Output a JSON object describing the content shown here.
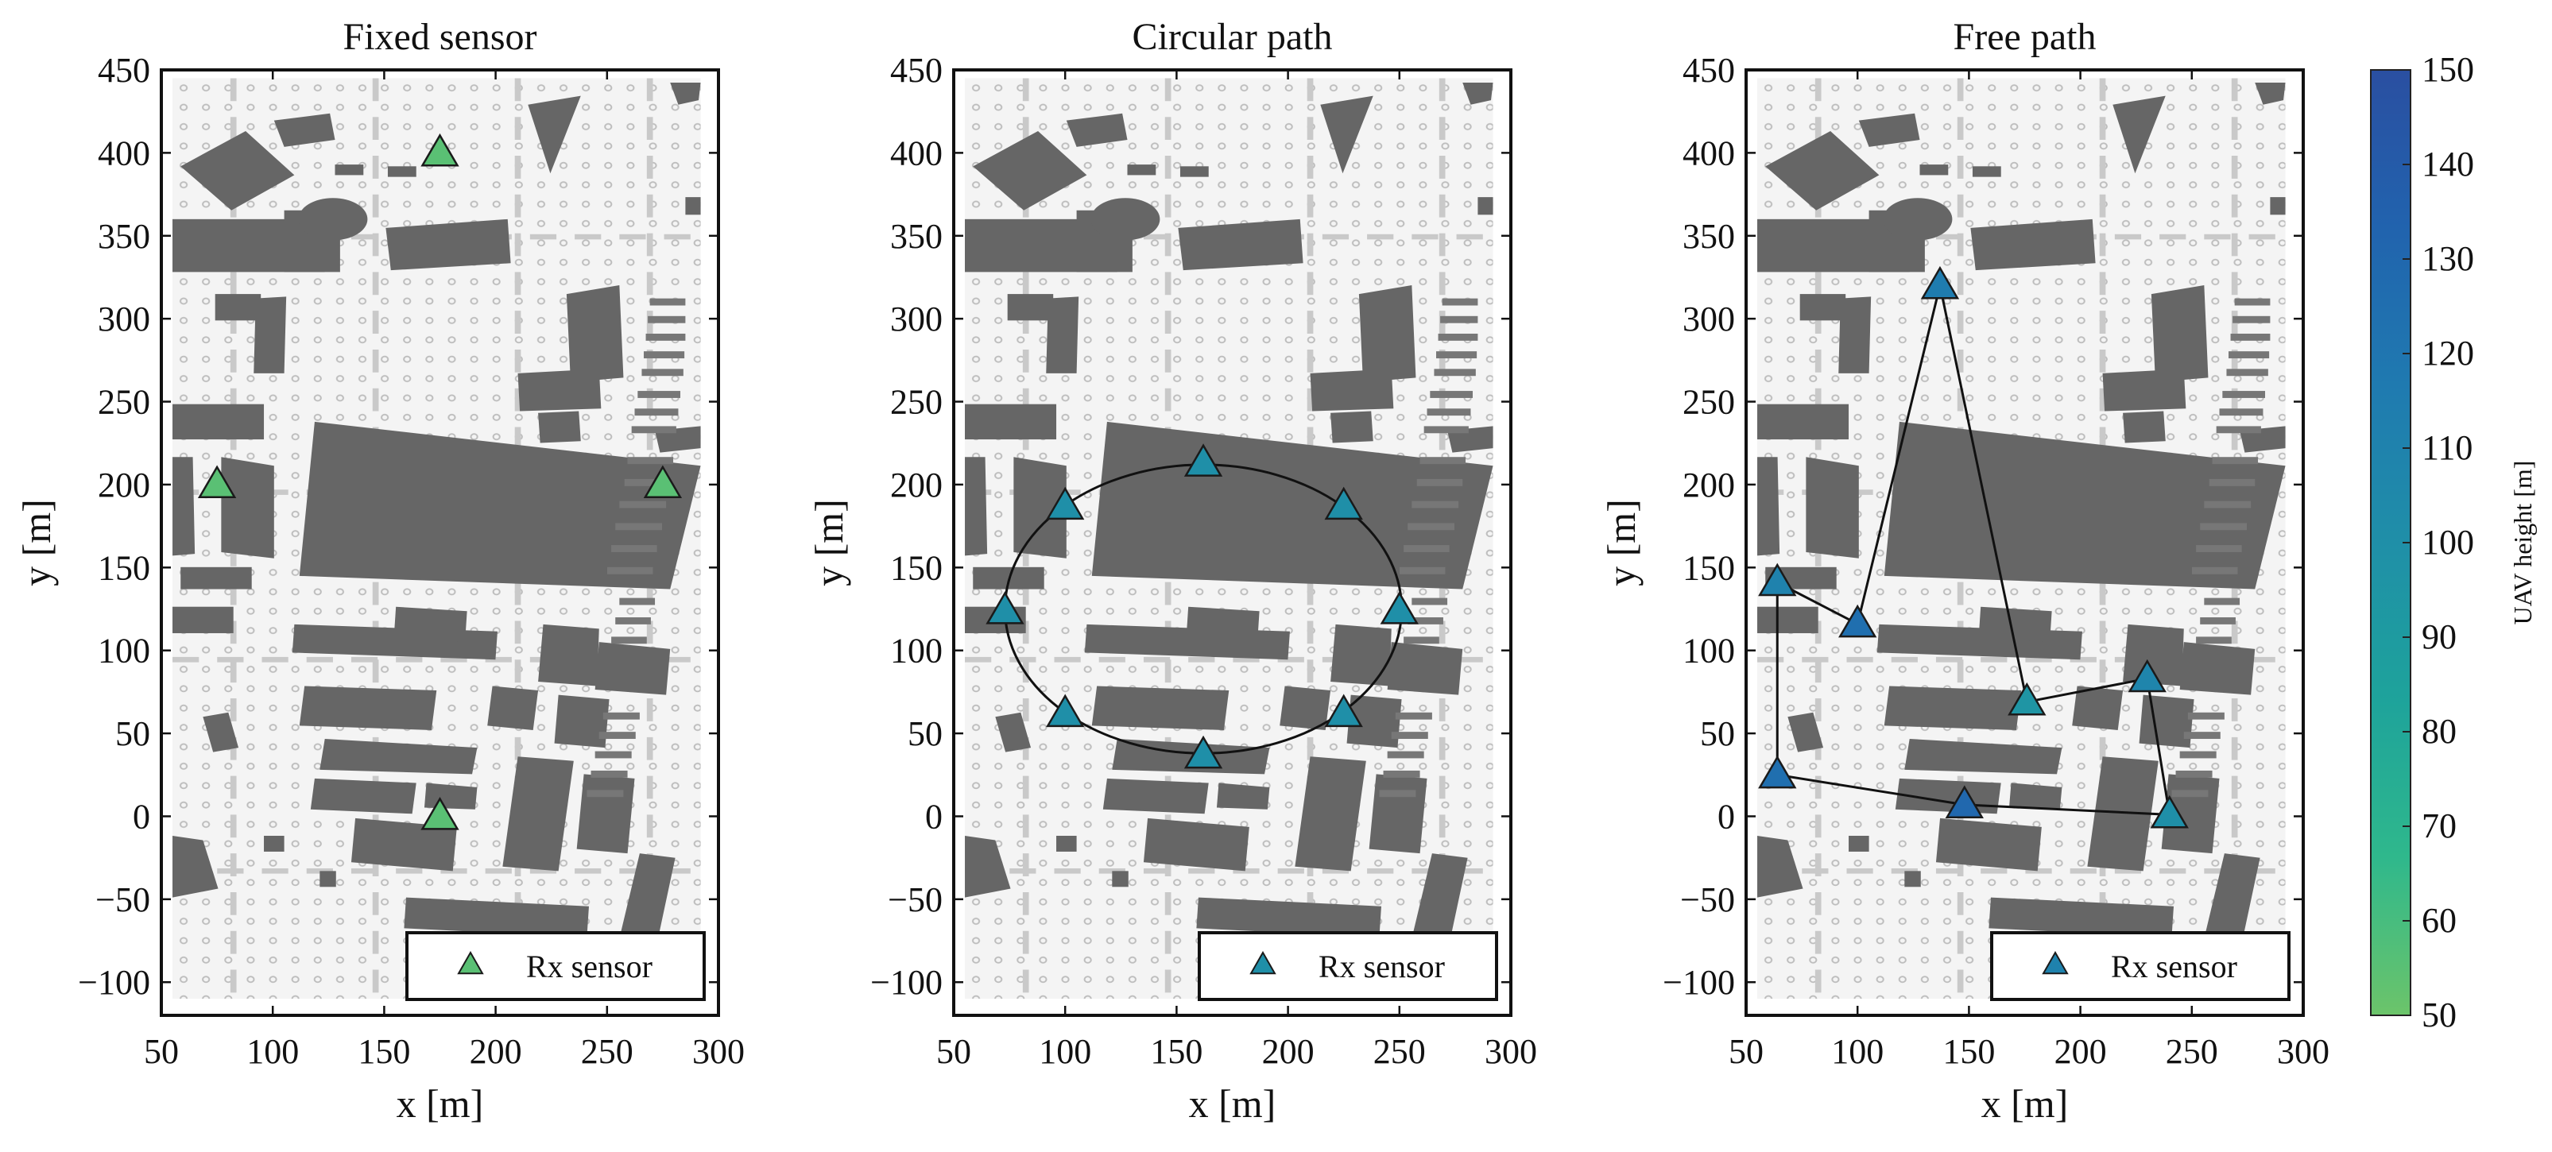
{
  "chart_data": [
    {
      "type": "scatter",
      "title": "Fixed sensor",
      "xlabel": "x [m]",
      "ylabel": "y [m]",
      "xlim": [
        50,
        300
      ],
      "ylim": [
        -120,
        450
      ],
      "xticks": [
        50,
        100,
        150,
        200,
        250,
        300
      ],
      "yticks": [
        450,
        400,
        350,
        300,
        250,
        200,
        150,
        100,
        50,
        0,
        -50,
        -100
      ],
      "connect": "none",
      "legend": {
        "label": "Rx sensor",
        "placement": "bottom-right"
      },
      "points": [
        {
          "x": 175,
          "y": 400,
          "h": 55
        },
        {
          "x": 75,
          "y": 200,
          "h": 55
        },
        {
          "x": 275,
          "y": 200,
          "h": 55
        },
        {
          "x": 175,
          "y": 0,
          "h": 55
        }
      ]
    },
    {
      "type": "scatter",
      "title": "Circular path",
      "xlabel": "x [m]",
      "ylabel": "y [m]",
      "xlim": [
        50,
        300
      ],
      "ylim": [
        -120,
        450
      ],
      "xticks": [
        50,
        100,
        150,
        200,
        250,
        300
      ],
      "yticks": [
        450,
        400,
        350,
        300,
        250,
        200,
        150,
        100,
        50,
        0,
        -50,
        -100
      ],
      "connect": "ellipse",
      "ellipse": {
        "cx": 162,
        "cy": 125,
        "rx": 89,
        "ry": 87
      },
      "legend": {
        "label": "Rx sensor",
        "placement": "bottom-right"
      },
      "points": [
        {
          "x": 162,
          "y": 213,
          "h": 100
        },
        {
          "x": 225,
          "y": 187,
          "h": 100
        },
        {
          "x": 250,
          "y": 124,
          "h": 100
        },
        {
          "x": 225,
          "y": 62,
          "h": 100
        },
        {
          "x": 162,
          "y": 37,
          "h": 100
        },
        {
          "x": 100,
          "y": 62,
          "h": 100
        },
        {
          "x": 73,
          "y": 124,
          "h": 100
        },
        {
          "x": 100,
          "y": 187,
          "h": 100
        }
      ]
    },
    {
      "type": "scatter",
      "title": "Free path",
      "xlabel": "x [m]",
      "ylabel": "y [m]",
      "xlim": [
        50,
        300
      ],
      "ylim": [
        -120,
        450
      ],
      "xticks": [
        50,
        100,
        150,
        200,
        250,
        300
      ],
      "yticks": [
        450,
        400,
        350,
        300,
        250,
        200,
        150,
        100,
        50,
        0,
        -50,
        -100
      ],
      "connect": "polyline",
      "legend": {
        "label": "Rx sensor",
        "placement": "bottom-right"
      },
      "points": [
        {
          "x": 64,
          "y": 141,
          "h": 110
        },
        {
          "x": 100,
          "y": 116,
          "h": 125
        },
        {
          "x": 137,
          "y": 320,
          "h": 115
        },
        {
          "x": 176,
          "y": 69,
          "h": 95
        },
        {
          "x": 230,
          "y": 83,
          "h": 108
        },
        {
          "x": 240,
          "y": 1,
          "h": 100
        },
        {
          "x": 148,
          "y": 7,
          "h": 130
        },
        {
          "x": 64,
          "y": 25,
          "h": 125
        },
        {
          "x": 64,
          "y": 141,
          "h": 110
        }
      ]
    }
  ],
  "colorbar": {
    "label": "UAV height [m]",
    "range": [
      50,
      150
    ],
    "ticks": [
      150,
      140,
      130,
      120,
      110,
      100,
      90,
      80,
      70,
      60,
      50
    ],
    "colormap": [
      "#6cc46a",
      "#2fb88c",
      "#1ea39b",
      "#1f8fa8",
      "#1f7ab0",
      "#2163ae",
      "#2a4fa1"
    ]
  },
  "colors": {
    "building": "#666666",
    "map_background": "#f2f2f2",
    "marker_edge": "#1a1a1a"
  }
}
